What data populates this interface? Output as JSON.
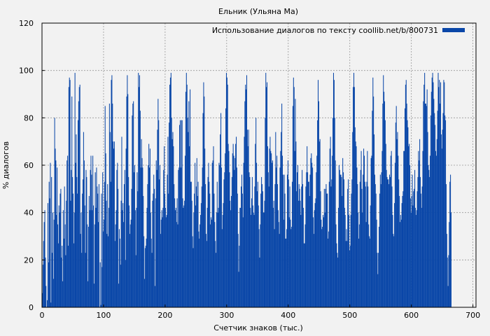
{
  "chart_data": {
    "type": "bar",
    "title": "Ельник (Ульяна Ма)",
    "xlabel": "Счетчик знаков (тыс.)",
    "ylabel": "% диалогов",
    "xlim": [
      0,
      705
    ],
    "ylim": [
      0,
      120
    ],
    "x_ticks": [
      0,
      100,
      200,
      300,
      400,
      500,
      600,
      700
    ],
    "y_ticks": [
      0,
      20,
      40,
      60,
      80,
      100,
      120
    ],
    "grid": true,
    "legend_position": "top-right",
    "bar_color": "#0a47a8",
    "series": [
      {
        "name": "Использование диалогов по тексту coollib.net/b/800731",
        "x_step": 1,
        "values": [
          6,
          18,
          28,
          36,
          41,
          21,
          9,
          0,
          3,
          44,
          19,
          53,
          46,
          61,
          2,
          55,
          23,
          40,
          12,
          37,
          80,
          67,
          62,
          39,
          59,
          35,
          27,
          43,
          40,
          48,
          50,
          21,
          26,
          11,
          41,
          29,
          51,
          35,
          22,
          45,
          62,
          64,
          26,
          93,
          97,
          96,
          45,
          58,
          89,
          55,
          48,
          27,
          40,
          99,
          61,
          73,
          55,
          48,
          79,
          87,
          93,
          94,
          31,
          40,
          23,
          48,
          54,
          74,
          62,
          43,
          23,
          58,
          55,
          35,
          11,
          34,
          47,
          41,
          58,
          64,
          56,
          41,
          64,
          43,
          10,
          35,
          57,
          42,
          59,
          51,
          48,
          36,
          52,
          0,
          19,
          1,
          48,
          17,
          57,
          32,
          37,
          53,
          85,
          65,
          45,
          31,
          52,
          30,
          42,
          86,
          74,
          53,
          96,
          98,
          86,
          70,
          67,
          70,
          28,
          35,
          41,
          58,
          61,
          50,
          10,
          33,
          29,
          18,
          45,
          72,
          41,
          44,
          36,
          52,
          58,
          20,
          67,
          89,
          98,
          90,
          55,
          43,
          31,
          35,
          37,
          50,
          81,
          86,
          87,
          57,
          60,
          41,
          22,
          42,
          57,
          49,
          99,
          93,
          98,
          83,
          59,
          71,
          63,
          59,
          47,
          30,
          12,
          25,
          26,
          29,
          42,
          52,
          60,
          69,
          59,
          67,
          40,
          29,
          23,
          45,
          48,
          56,
          50,
          9,
          46,
          62,
          58,
          75,
          88,
          79,
          54,
          60,
          31,
          37,
          41,
          38,
          42,
          58,
          68,
          48,
          42,
          38,
          39,
          56,
          72,
          48,
          78,
          94,
          97,
          99,
          80,
          71,
          74,
          68,
          52,
          46,
          41,
          42,
          36,
          46,
          35,
          58,
          59,
          77,
          79,
          59,
          79,
          79,
          46,
          42,
          43,
          45,
          64,
          91,
          99,
          94,
          80,
          74,
          87,
          68,
          92,
          53,
          53,
          45,
          30,
          25,
          40,
          48,
          61,
          43,
          51,
          63,
          47,
          53,
          32,
          29,
          35,
          39,
          44,
          51,
          59,
          82,
          95,
          89,
          67,
          52,
          31,
          28,
          42,
          55,
          61,
          53,
          48,
          35,
          38,
          37,
          61,
          62,
          68,
          48,
          36,
          28,
          23,
          40,
          53,
          40,
          42,
          61,
          60,
          73,
          82,
          59,
          33,
          39,
          44,
          54,
          57,
          65,
          84,
          99,
          97,
          94,
          69,
          66,
          57,
          45,
          41,
          47,
          55,
          65,
          69,
          64,
          58,
          63,
          69,
          72,
          59,
          48,
          31,
          15,
          26,
          42,
          42,
          51,
          56,
          48,
          38,
          61,
          72,
          87,
          94,
          92,
          98,
          75,
          68,
          75,
          57,
          55,
          42,
          39,
          46,
          55,
          43,
          40,
          39,
          51,
          69,
          80,
          61,
          49,
          53,
          43,
          33,
          21,
          35,
          48,
          55,
          52,
          49,
          40,
          40,
          45,
          80,
          99,
          93,
          95,
          68,
          57,
          51,
          67,
          72,
          66,
          65,
          61,
          62,
          42,
          45,
          33,
          52,
          74,
          59,
          64,
          52,
          41,
          36,
          31,
          59,
          66,
          74,
          86,
          64,
          56,
          37,
          56,
          48,
          29,
          29,
          33,
          56,
          62,
          54,
          38,
          51,
          37,
          33,
          34,
          53,
          85,
          97,
          93,
          66,
          88,
          70,
          49,
          57,
          60,
          45,
          52,
          50,
          45,
          39,
          51,
          58,
          52,
          42,
          27,
          27,
          35,
          51,
          57,
          68,
          57,
          53,
          53,
          47,
          56,
          63,
          65,
          61,
          59,
          38,
          31,
          41,
          44,
          46,
          57,
          64,
          79,
          96,
          87,
          70,
          71,
          49,
          37,
          33,
          34,
          39,
          38,
          50,
          40,
          50,
          52,
          48,
          48,
          29,
          32,
          53,
          67,
          72,
          51,
          54,
          64,
          80,
          99,
          96,
          80,
          62,
          35,
          27,
          23,
          21,
          42,
          60,
          58,
          56,
          56,
          55,
          47,
          63,
          57,
          54,
          42,
          39,
          28,
          33,
          28,
          50,
          54,
          39,
          24,
          26,
          39,
          48,
          54,
          74,
          93,
          99,
          93,
          76,
          70,
          68,
          59,
          52,
          40,
          29,
          35,
          53,
          58,
          66,
          50,
          40,
          56,
          67,
          64,
          53,
          51,
          36,
          53,
          66,
          51,
          35,
          30,
          29,
          43,
          63,
          64,
          83,
          97,
          89,
          73,
          56,
          52,
          48,
          37,
          23,
          14,
          23,
          34,
          48,
          56,
          52,
          57,
          66,
          86,
          98,
          91,
          87,
          79,
          69,
          58,
          55,
          54,
          54,
          52,
          56,
          55,
          64,
          66,
          51,
          39,
          31,
          30,
          44,
          61,
          78,
          85,
          71,
          74,
          64,
          54,
          47,
          36,
          39,
          37,
          44,
          47,
          49,
          66,
          66,
          84,
          94,
          96,
          86,
          79,
          76,
          68,
          69,
          60,
          46,
          40,
          47,
          56,
          43,
          49,
          50,
          58,
          42,
          39,
          41,
          49,
          55,
          66,
          62,
          71,
          55,
          48,
          42,
          51,
          66,
          87,
          94,
          99,
          86,
          86,
          85,
          92,
          74,
          60,
          58,
          55,
          64,
          81,
          91,
          97,
          99,
          95,
          88,
          82,
          77,
          66,
          64,
          71,
          83,
          99,
          93,
          96,
          86,
          95,
          73,
          67,
          75,
          82,
          96,
          95,
          81,
          79,
          52,
          31,
          21,
          9,
          22,
          36,
          53,
          56,
          40
        ]
      }
    ]
  }
}
